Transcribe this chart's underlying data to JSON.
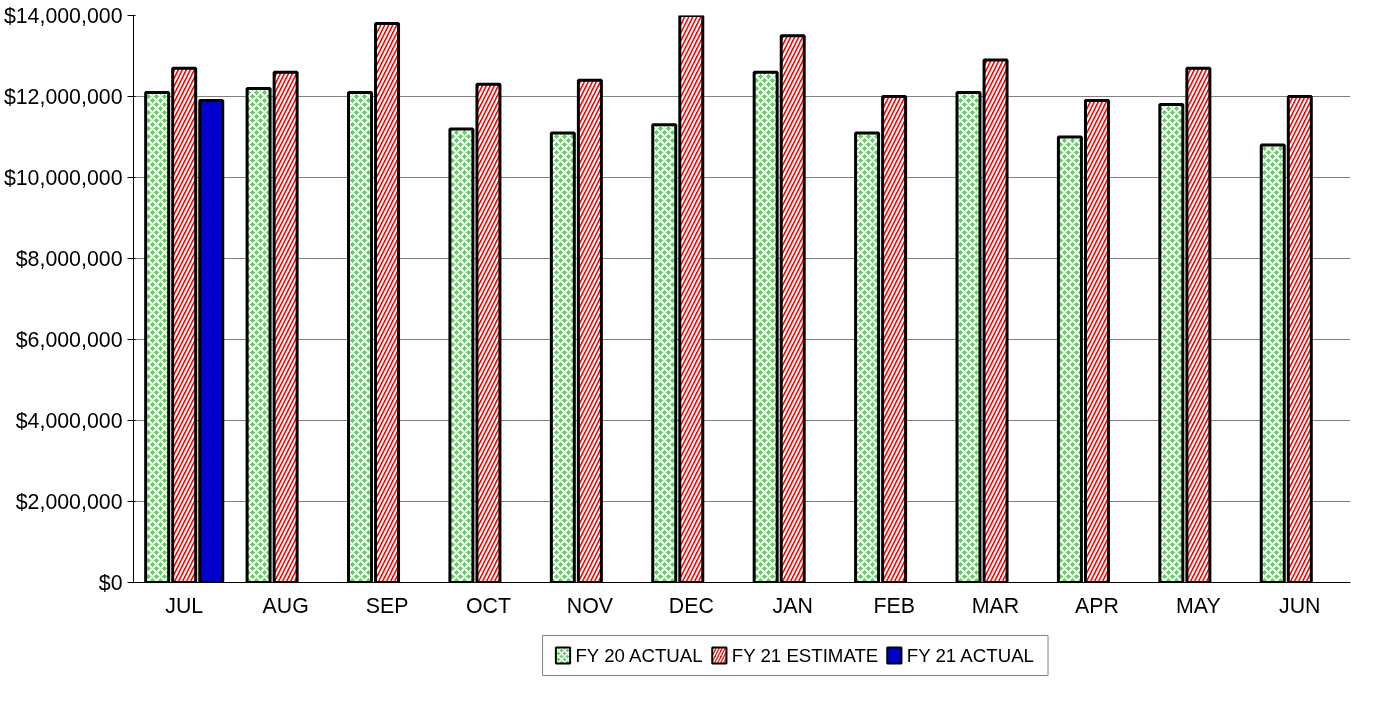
{
  "chart_data": {
    "type": "bar",
    "categories": [
      "JUL",
      "AUG",
      "SEP",
      "OCT",
      "NOV",
      "DEC",
      "JAN",
      "FEB",
      "MAR",
      "APR",
      "MAY",
      "JUN"
    ],
    "series": [
      {
        "name": "FY 20 ACTUAL",
        "color": "#66cc66",
        "values": [
          12100000,
          12200000,
          12100000,
          11200000,
          11100000,
          11300000,
          12600000,
          11100000,
          12100000,
          11000000,
          11800000,
          10800000
        ]
      },
      {
        "name": "FY 21 ESTIMATE",
        "color": "#ff0000",
        "values": [
          12700000,
          12600000,
          13800000,
          12300000,
          12400000,
          14000000,
          13500000,
          12000000,
          12900000,
          11900000,
          12700000,
          12000000
        ]
      },
      {
        "name": "FY 21 ACTUAL",
        "color": "#0000cc",
        "values": [
          11900000,
          null,
          null,
          null,
          null,
          null,
          null,
          null,
          null,
          null,
          null,
          null
        ]
      }
    ],
    "ylim": [
      0,
      14000000
    ],
    "yticks": [
      {
        "value": 0,
        "label": "$0"
      },
      {
        "value": 2000000,
        "label": "$2,000,000"
      },
      {
        "value": 4000000,
        "label": "$4,000,000"
      },
      {
        "value": 6000000,
        "label": "$6,000,000"
      },
      {
        "value": 8000000,
        "label": "$8,000,000"
      },
      {
        "value": 10000000,
        "label": "$10,000,000"
      },
      {
        "value": 12000000,
        "label": "$12,000,000"
      },
      {
        "value": 14000000,
        "label": "$14,000,000"
      }
    ],
    "grid": "y",
    "legend": "bottom"
  }
}
